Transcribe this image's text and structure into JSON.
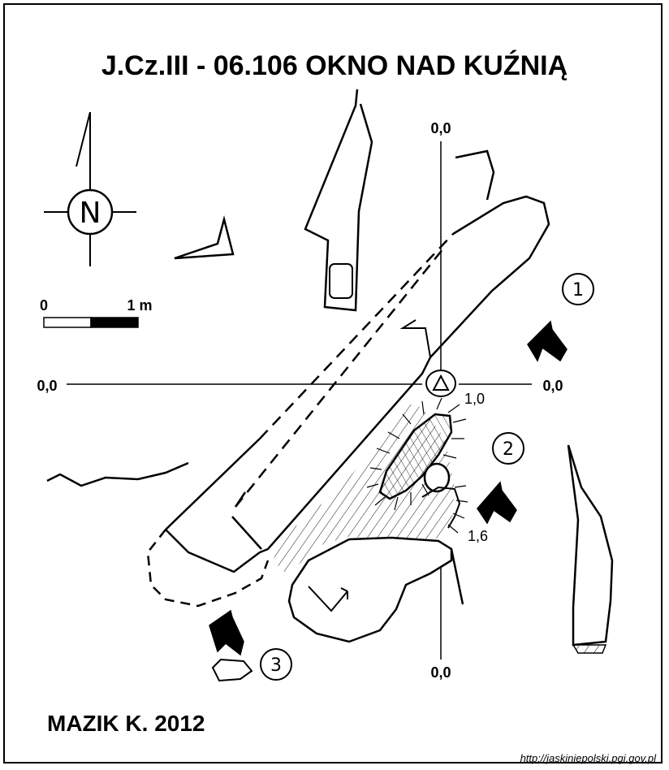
{
  "title": "J.Cz.III - 06.106  OKNO NAD KUŹNIĄ",
  "compass": {
    "label": "N"
  },
  "scale_bar": {
    "label_start": "0",
    "label_end": "1 m"
  },
  "axis_labels": {
    "top": "0,0",
    "bottom": "0,0",
    "left": "0,0",
    "right": "0,0"
  },
  "depth_labels": {
    "d1": "1,0",
    "d2": "1,6"
  },
  "entrances": [
    {
      "number": "1"
    },
    {
      "number": "2"
    },
    {
      "number": "3"
    }
  ],
  "author": "MAZIK K. 2012",
  "source_url": "http://jaskiniepolski.pgi.gov.pl",
  "colors": {
    "ink": "#000000",
    "paper": "#ffffff"
  },
  "icon_names": [
    "compass-north-icon",
    "survey-station-triangle-icon",
    "entrance-arrow-icon"
  ]
}
